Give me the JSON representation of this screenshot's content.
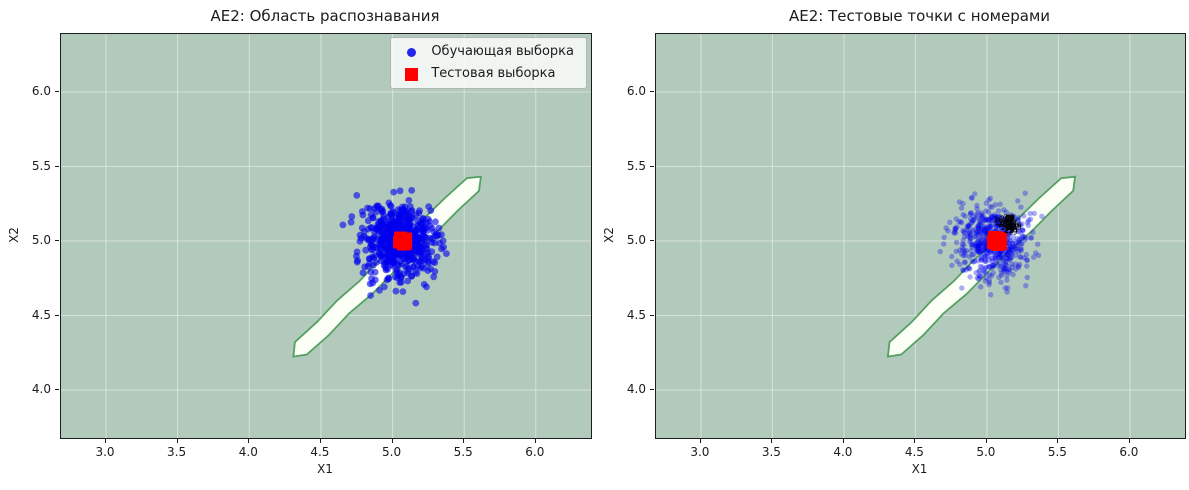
{
  "chart_data": [
    {
      "type": "scatter",
      "title": "AE2: Область распознавания",
      "xlabel": "X1",
      "ylabel": "X2",
      "xlim": [
        2.686,
        6.385
      ],
      "ylim": [
        3.678,
        6.389
      ],
      "xticks": [
        3.0,
        3.5,
        4.0,
        4.5,
        5.0,
        5.5,
        6.0
      ],
      "yticks": [
        4.0,
        4.5,
        5.0,
        5.5,
        6.0
      ],
      "grid": true,
      "grid_color": "#ffffff",
      "axes_background_color": "#b2cabb",
      "recognition_region": {
        "description": "narrow white diagonal band with green contour (recognition region)",
        "from": [
          4.36,
          4.28
        ],
        "to": [
          5.56,
          5.38
        ],
        "half_width": 0.06,
        "fill_color": "#fbfff6",
        "edge_color": "#54a062"
      },
      "series": [
        {
          "name": "Обучающая выборка",
          "marker": "circle",
          "color": "#0000ee",
          "opacity": 0.6,
          "marker_radius_px": 3.4,
          "cluster": {
            "center": [
              5.04,
              5.0
            ],
            "std": 0.125,
            "approx_n": 600
          }
        },
        {
          "name": "Тестовая выборка",
          "marker": "square",
          "color": "#ff0000",
          "marker_size_px": 13,
          "cluster": {
            "center": [
              5.07,
              5.0
            ],
            "std": 0.015
          }
        }
      ],
      "legend": {
        "visible": true,
        "position": "upper right"
      }
    },
    {
      "type": "scatter",
      "title": "AE2: Тестовые точки с номерами",
      "xlabel": "X1",
      "ylabel": "X2",
      "xlim": [
        2.686,
        6.385
      ],
      "ylim": [
        3.678,
        6.389
      ],
      "xticks": [
        3.0,
        3.5,
        4.0,
        4.5,
        5.0,
        5.5,
        6.0
      ],
      "yticks": [
        4.0,
        4.5,
        5.0,
        5.5,
        6.0
      ],
      "grid": true,
      "grid_color": "#ffffff",
      "axes_background_color": "#b2cabb",
      "recognition_region": {
        "description": "narrow white diagonal band with green contour (recognition region)",
        "from": [
          4.36,
          4.28
        ],
        "to": [
          5.56,
          5.38
        ],
        "half_width": 0.06,
        "fill_color": "#fbfff6",
        "edge_color": "#54a062"
      },
      "series": [
        {
          "name": "Обучающая выборка",
          "marker": "circle",
          "color": "#0000ee",
          "opacity": 0.32,
          "marker_radius_px": 2.7,
          "cluster": {
            "center": [
              5.04,
              5.0
            ],
            "std": 0.125,
            "approx_n": 600
          }
        },
        {
          "name": "Тестовая выборка",
          "marker": "square",
          "color": "#ff0000",
          "marker_size_px": 14,
          "cluster": {
            "center": [
              5.07,
              5.0
            ],
            "std": 0.015
          }
        }
      ],
      "annotation_cluster": {
        "description": "dense overlapping black test-point number labels (illegible blob)",
        "center": [
          5.16,
          5.1
        ],
        "spread": 0.035,
        "color": "#000000"
      },
      "legend": {
        "visible": false
      }
    }
  ]
}
